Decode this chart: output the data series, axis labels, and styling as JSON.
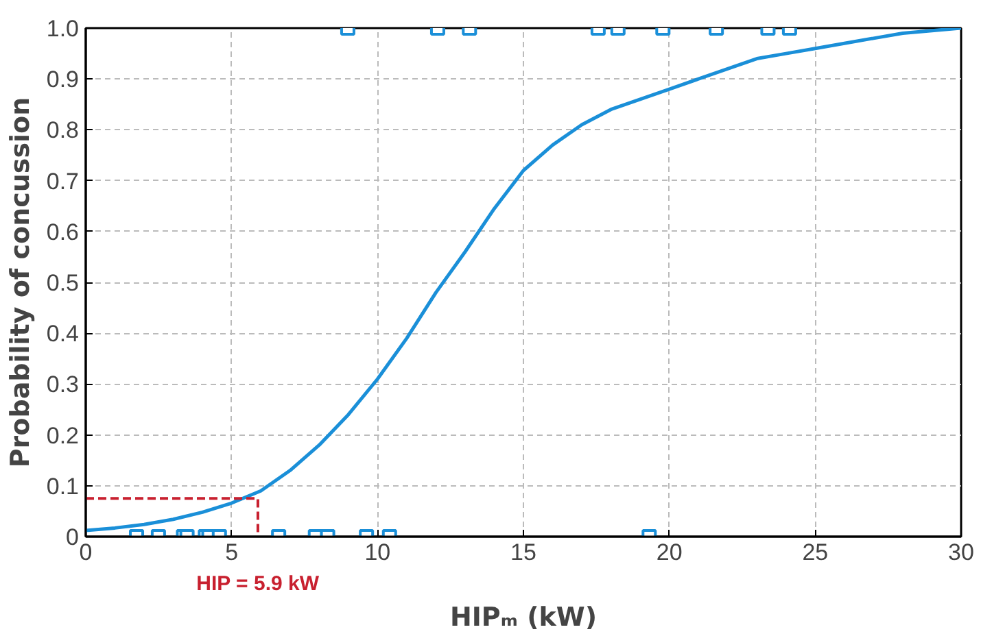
{
  "chart_data": {
    "type": "line",
    "xlabel": "HIPₘ (kW)",
    "ylabel": "Probability of concussion",
    "xlim": [
      0,
      30
    ],
    "ylim": [
      0,
      1.0
    ],
    "xticks": [
      0,
      5,
      10,
      15,
      20,
      25,
      30
    ],
    "yticks": [
      0,
      0.1,
      0.2,
      0.3,
      0.4,
      0.5,
      0.6,
      0.7,
      0.8,
      0.9,
      {
        "value": 1.0,
        "label": "1.0"
      }
    ],
    "grid": true,
    "series": [
      {
        "type": "line",
        "color": "#1a8fd8",
        "line_style": "solid",
        "x": [
          0,
          1,
          2,
          3,
          4,
          5,
          6,
          7,
          8,
          9,
          10,
          11,
          12,
          13,
          14,
          15,
          16,
          17,
          18,
          19,
          20,
          21,
          22,
          23,
          24,
          25,
          26,
          27,
          28,
          29,
          30
        ],
        "values": [
          0.012,
          0.017,
          0.024,
          0.034,
          0.048,
          0.066,
          0.09,
          0.13,
          0.18,
          0.24,
          0.31,
          0.39,
          0.48,
          0.56,
          0.645,
          0.72,
          0.77,
          0.81,
          0.84,
          0.86,
          0.88,
          0.9,
          0.92,
          0.94,
          0.95,
          0.96,
          0.97,
          0.98,
          0.99,
          0.995,
          1.0
        ]
      },
      {
        "type": "scatter",
        "color": "#1a8fd8",
        "marker": "square",
        "x": [
          1.74,
          2.49,
          3.35,
          3.47,
          4.1,
          4.22,
          4.58,
          6.61,
          7.87,
          8.29,
          9.62,
          10.41,
          19.31,
          8.98,
          12.06,
          13.15,
          17.56,
          18.24,
          19.78,
          21.61,
          23.38,
          24.12
        ],
        "values": [
          0,
          0,
          0,
          0,
          0,
          0,
          0,
          0,
          0,
          0,
          0,
          0,
          0,
          1,
          1,
          1,
          1,
          1,
          1,
          1,
          1,
          1
        ]
      },
      {
        "type": "line",
        "color": "#c8202f",
        "line_style": "dashed",
        "x": [
          0,
          5.9,
          5.9
        ],
        "values": [
          0.075,
          0.075,
          0
        ]
      }
    ],
    "annotations": [
      "HIP = 5.9 kW"
    ]
  }
}
